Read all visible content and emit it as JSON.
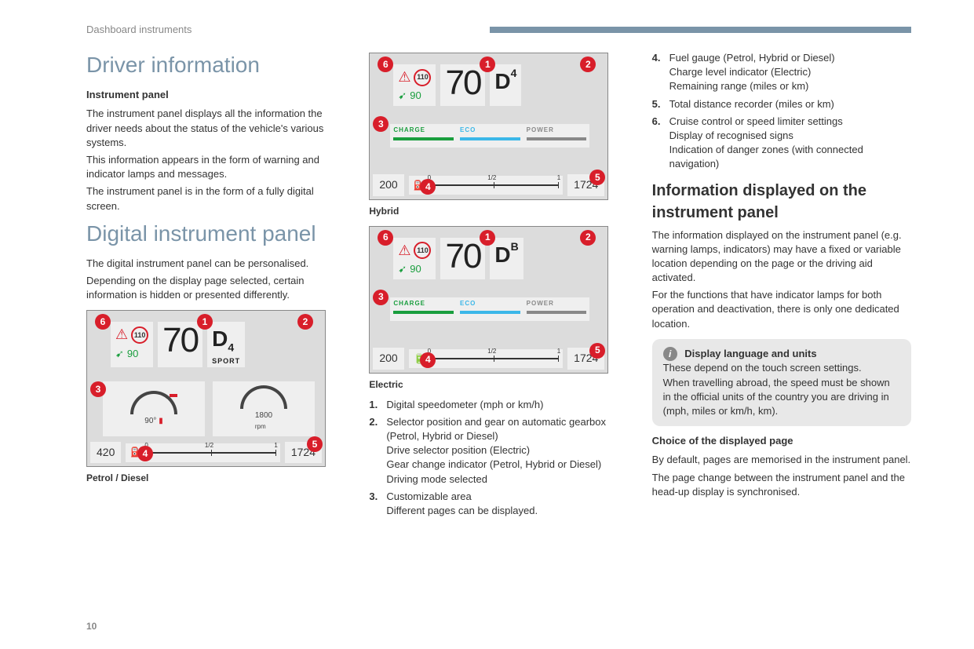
{
  "header": {
    "section": "Dashboard instruments",
    "bar_color": "#7a94a8"
  },
  "page_number": "10",
  "col1": {
    "h1a": "Driver information",
    "h2a": "Instrument panel",
    "p1": "The instrument panel displays all the information the driver needs about the status of the vehicle's various systems.",
    "p2": "This information appears in the form of warning and indicator lamps and messages.",
    "p3": "The instrument panel is in the form of a fully digital screen.",
    "h1b": "Digital instrument panel",
    "p4": "The digital instrument panel can be personalised.",
    "p5": "Depending on the display page selected, certain information is hidden or presented differently.",
    "fig1_caption": "Petrol / Diesel"
  },
  "col2": {
    "fig2_caption": "Hybrid",
    "fig3_caption": "Electric",
    "legend": {
      "i1": {
        "t": "Digital speedometer (mph or km/h)"
      },
      "i2": {
        "l1": "Selector position and gear on automatic gearbox (Petrol, Hybrid or Diesel)",
        "l2": "Drive selector position (Electric)",
        "l3": "Gear change indicator (Petrol, Hybrid or Diesel)",
        "l4": "Driving mode selected"
      },
      "i3": {
        "l1": "Customizable area",
        "l2": "Different pages can be displayed."
      }
    }
  },
  "col3": {
    "legend": {
      "i4": {
        "l1": "Fuel gauge (Petrol, Hybrid or Diesel)",
        "l2": "Charge level indicator (Electric)",
        "l3": "Remaining range (miles or km)"
      },
      "i5": {
        "t": "Total distance recorder (miles or km)"
      },
      "i6": {
        "l1": "Cruise control or speed limiter settings",
        "l2": "Display of recognised signs",
        "l3": "Indication of danger zones (with connected navigation)"
      }
    },
    "h3": "Information displayed on the instrument panel",
    "p1": "The information displayed on the instrument panel (e.g. warning lamps, indicators) may have a fixed or variable location depending on the page or the driving aid activated.",
    "p2": "For the functions that have indicator lamps for both operation and deactivation, there is only one dedicated location.",
    "note": {
      "title": "Display language and units",
      "l1": "These depend on the touch screen settings.",
      "l2": "When travelling abroad, the speed must be shown in the official units of the country you are driving in (mph, miles or km/h, km)."
    },
    "h2": "Choice of the displayed page",
    "p3": "By default, pages are memorised in the instrument panel.",
    "p4": "The page change between the instrument panel and the head-up display is synchronised."
  },
  "panel": {
    "callouts": [
      "1",
      "2",
      "3",
      "4",
      "5",
      "6"
    ],
    "speed": "70",
    "gear_d": "D",
    "gear_sub": "4",
    "gear_sup_b": "B",
    "sport": "SPORT",
    "sign": "110",
    "cruise": "90",
    "temp_val": "90°",
    "temp_unit": "c",
    "rpm_val": "1800",
    "rpm_unit": "rpm",
    "odo_left_petrol": "420",
    "odo_left_hyb": "200",
    "odo_right": "1724",
    "fuel_0": "0",
    "fuel_half": "1/2",
    "fuel_1": "1",
    "bar": {
      "charge": "CHARGE",
      "eco": "ECO",
      "power": "POWER",
      "charge_color": "#1a9e3e",
      "eco_color": "#3bb7e8",
      "power_color": "#888888"
    }
  },
  "colors": {
    "red": "#d81e2a",
    "green": "#1a9e3e",
    "blue": "#3bb7e8",
    "grey": "#888888",
    "accent": "#7a94a8"
  }
}
